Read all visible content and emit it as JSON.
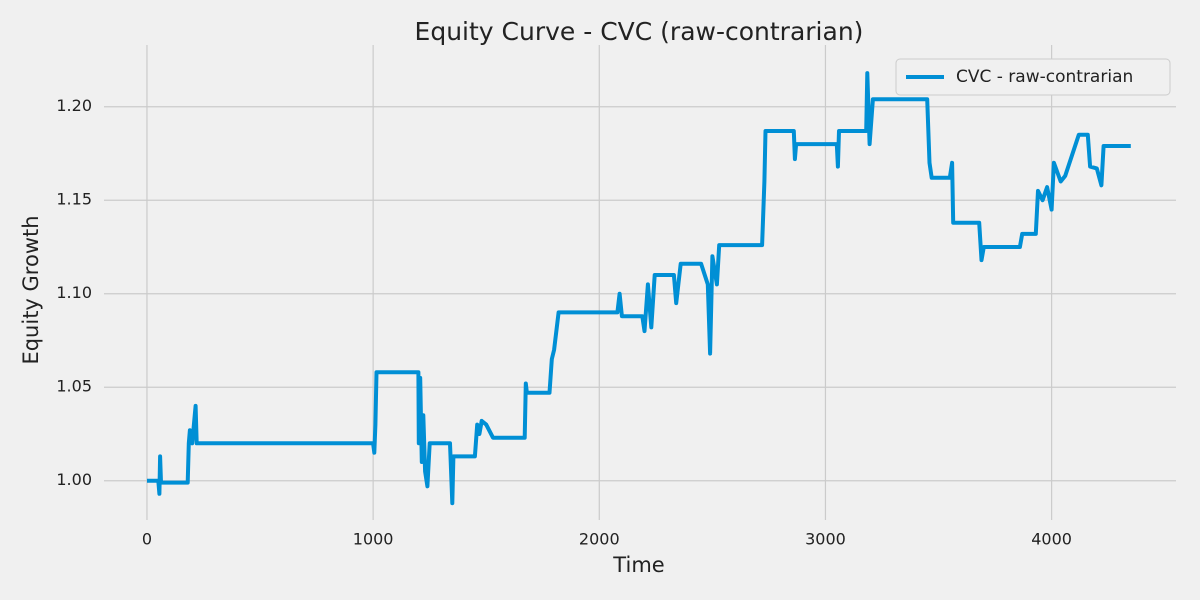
{
  "chart_data": {
    "type": "line",
    "title": "Equity Curve - CVC (raw-contrarian)",
    "x_label": "Time",
    "y_label": "Equity Growth",
    "x": [
      0,
      50,
      55,
      58,
      62,
      180,
      185,
      190,
      200,
      215,
      220,
      1000,
      1005,
      1010,
      1015,
      1200,
      1202,
      1208,
      1215,
      1222,
      1230,
      1240,
      1250,
      1340,
      1350,
      1355,
      1450,
      1460,
      1470,
      1480,
      1500,
      1530,
      1670,
      1675,
      1680,
      1780,
      1790,
      1800,
      1820,
      2080,
      2090,
      2100,
      2190,
      2200,
      2215,
      2230,
      2245,
      2330,
      2340,
      2360,
      2450,
      2480,
      2490,
      2500,
      2520,
      2530,
      2720,
      2730,
      2735,
      2860,
      2865,
      2870,
      3050,
      3055,
      3060,
      3180,
      3185,
      3195,
      3210,
      3450,
      3460,
      3470,
      3550,
      3560,
      3565,
      3680,
      3690,
      3700,
      3860,
      3870,
      3930,
      3940,
      3960,
      3980,
      4000,
      4010,
      4040,
      4060,
      4120,
      4160,
      4170,
      4200,
      4220,
      4230,
      4350
    ],
    "series": [
      {
        "name": "CVC - raw-contrarian",
        "color": "#008fd5",
        "values": [
          1.0,
          1.0,
          0.993,
          1.013,
          0.999,
          0.999,
          1.02,
          1.027,
          1.02,
          1.04,
          1.02,
          1.02,
          1.015,
          1.03,
          1.058,
          1.058,
          1.02,
          1.055,
          1.01,
          1.035,
          1.005,
          0.997,
          1.02,
          1.02,
          0.988,
          1.013,
          1.013,
          1.03,
          1.025,
          1.032,
          1.03,
          1.023,
          1.023,
          1.052,
          1.047,
          1.047,
          1.065,
          1.07,
          1.09,
          1.09,
          1.1,
          1.088,
          1.088,
          1.08,
          1.105,
          1.082,
          1.11,
          1.11,
          1.095,
          1.116,
          1.116,
          1.105,
          1.068,
          1.12,
          1.105,
          1.126,
          1.126,
          1.16,
          1.187,
          1.187,
          1.172,
          1.18,
          1.18,
          1.168,
          1.187,
          1.187,
          1.218,
          1.18,
          1.204,
          1.204,
          1.17,
          1.162,
          1.162,
          1.17,
          1.138,
          1.138,
          1.118,
          1.125,
          1.125,
          1.132,
          1.132,
          1.155,
          1.15,
          1.157,
          1.145,
          1.17,
          1.16,
          1.163,
          1.185,
          1.185,
          1.168,
          1.167,
          1.158,
          1.179,
          1.179
        ]
      }
    ],
    "xlim": [
      -190,
      4550
    ],
    "ylim": [
      0.979,
      1.233
    ],
    "xticks": [
      0,
      1000,
      2000,
      3000,
      4000
    ],
    "yticks": [
      {
        "value": 1.0,
        "label": "1.00"
      },
      1.05,
      {
        "value": 1.1,
        "label": "1.10"
      },
      1.15,
      {
        "value": 1.2,
        "label": "1.20"
      }
    ],
    "grid": true,
    "legend": "upper right"
  }
}
